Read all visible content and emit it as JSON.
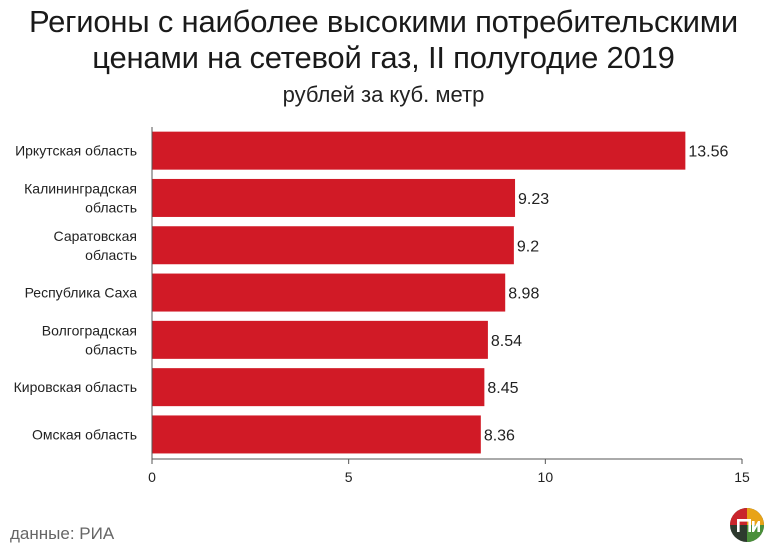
{
  "title_line1": "Регионы с наиболее высокими потребительскими",
  "title_line2": "ценами на сетевой газ, II полугодие 2019",
  "subtitle": "рублей за куб. метр",
  "source": "данные: РИА",
  "colors": {
    "bar": "#d11a26",
    "axis": "#555555",
    "text": "#222222"
  },
  "chart_data": {
    "type": "bar",
    "orientation": "horizontal",
    "title": "Регионы с наиболее высокими потребительскими ценами на сетевой газ, II полугодие 2019",
    "subtitle": "рублей за куб. метр",
    "categories": [
      [
        "Иркутская область"
      ],
      [
        "Калининградская",
        "область"
      ],
      [
        "Саратовская",
        "область"
      ],
      [
        "Республика Саха"
      ],
      [
        "Волгоградская",
        "область"
      ],
      [
        "Кировская область"
      ],
      [
        "Омская область"
      ]
    ],
    "values": [
      13.56,
      9.23,
      9.2,
      8.98,
      8.54,
      8.45,
      8.36
    ],
    "value_labels": [
      "13.56",
      "9.23",
      "9.2",
      "8.98",
      "8.54",
      "8.45",
      "8.36"
    ],
    "xlim": [
      0,
      15
    ],
    "xticks": [
      0,
      5,
      10,
      15
    ],
    "grid": false,
    "legend": "none"
  }
}
